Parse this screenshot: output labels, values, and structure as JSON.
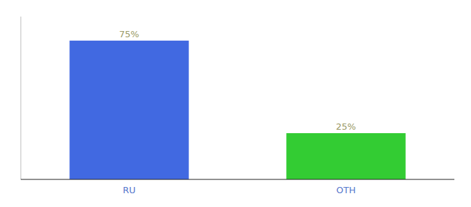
{
  "chart_data": {
    "type": "bar",
    "categories": [
      "RU",
      "OTH"
    ],
    "values": [
      75,
      25
    ],
    "value_labels": [
      "75%",
      "25%"
    ],
    "colors": [
      "#4169e1",
      "#33cc33"
    ],
    "ylim": [
      0,
      88
    ],
    "data_labels": true,
    "tick_labels": "x",
    "grid": false
  }
}
